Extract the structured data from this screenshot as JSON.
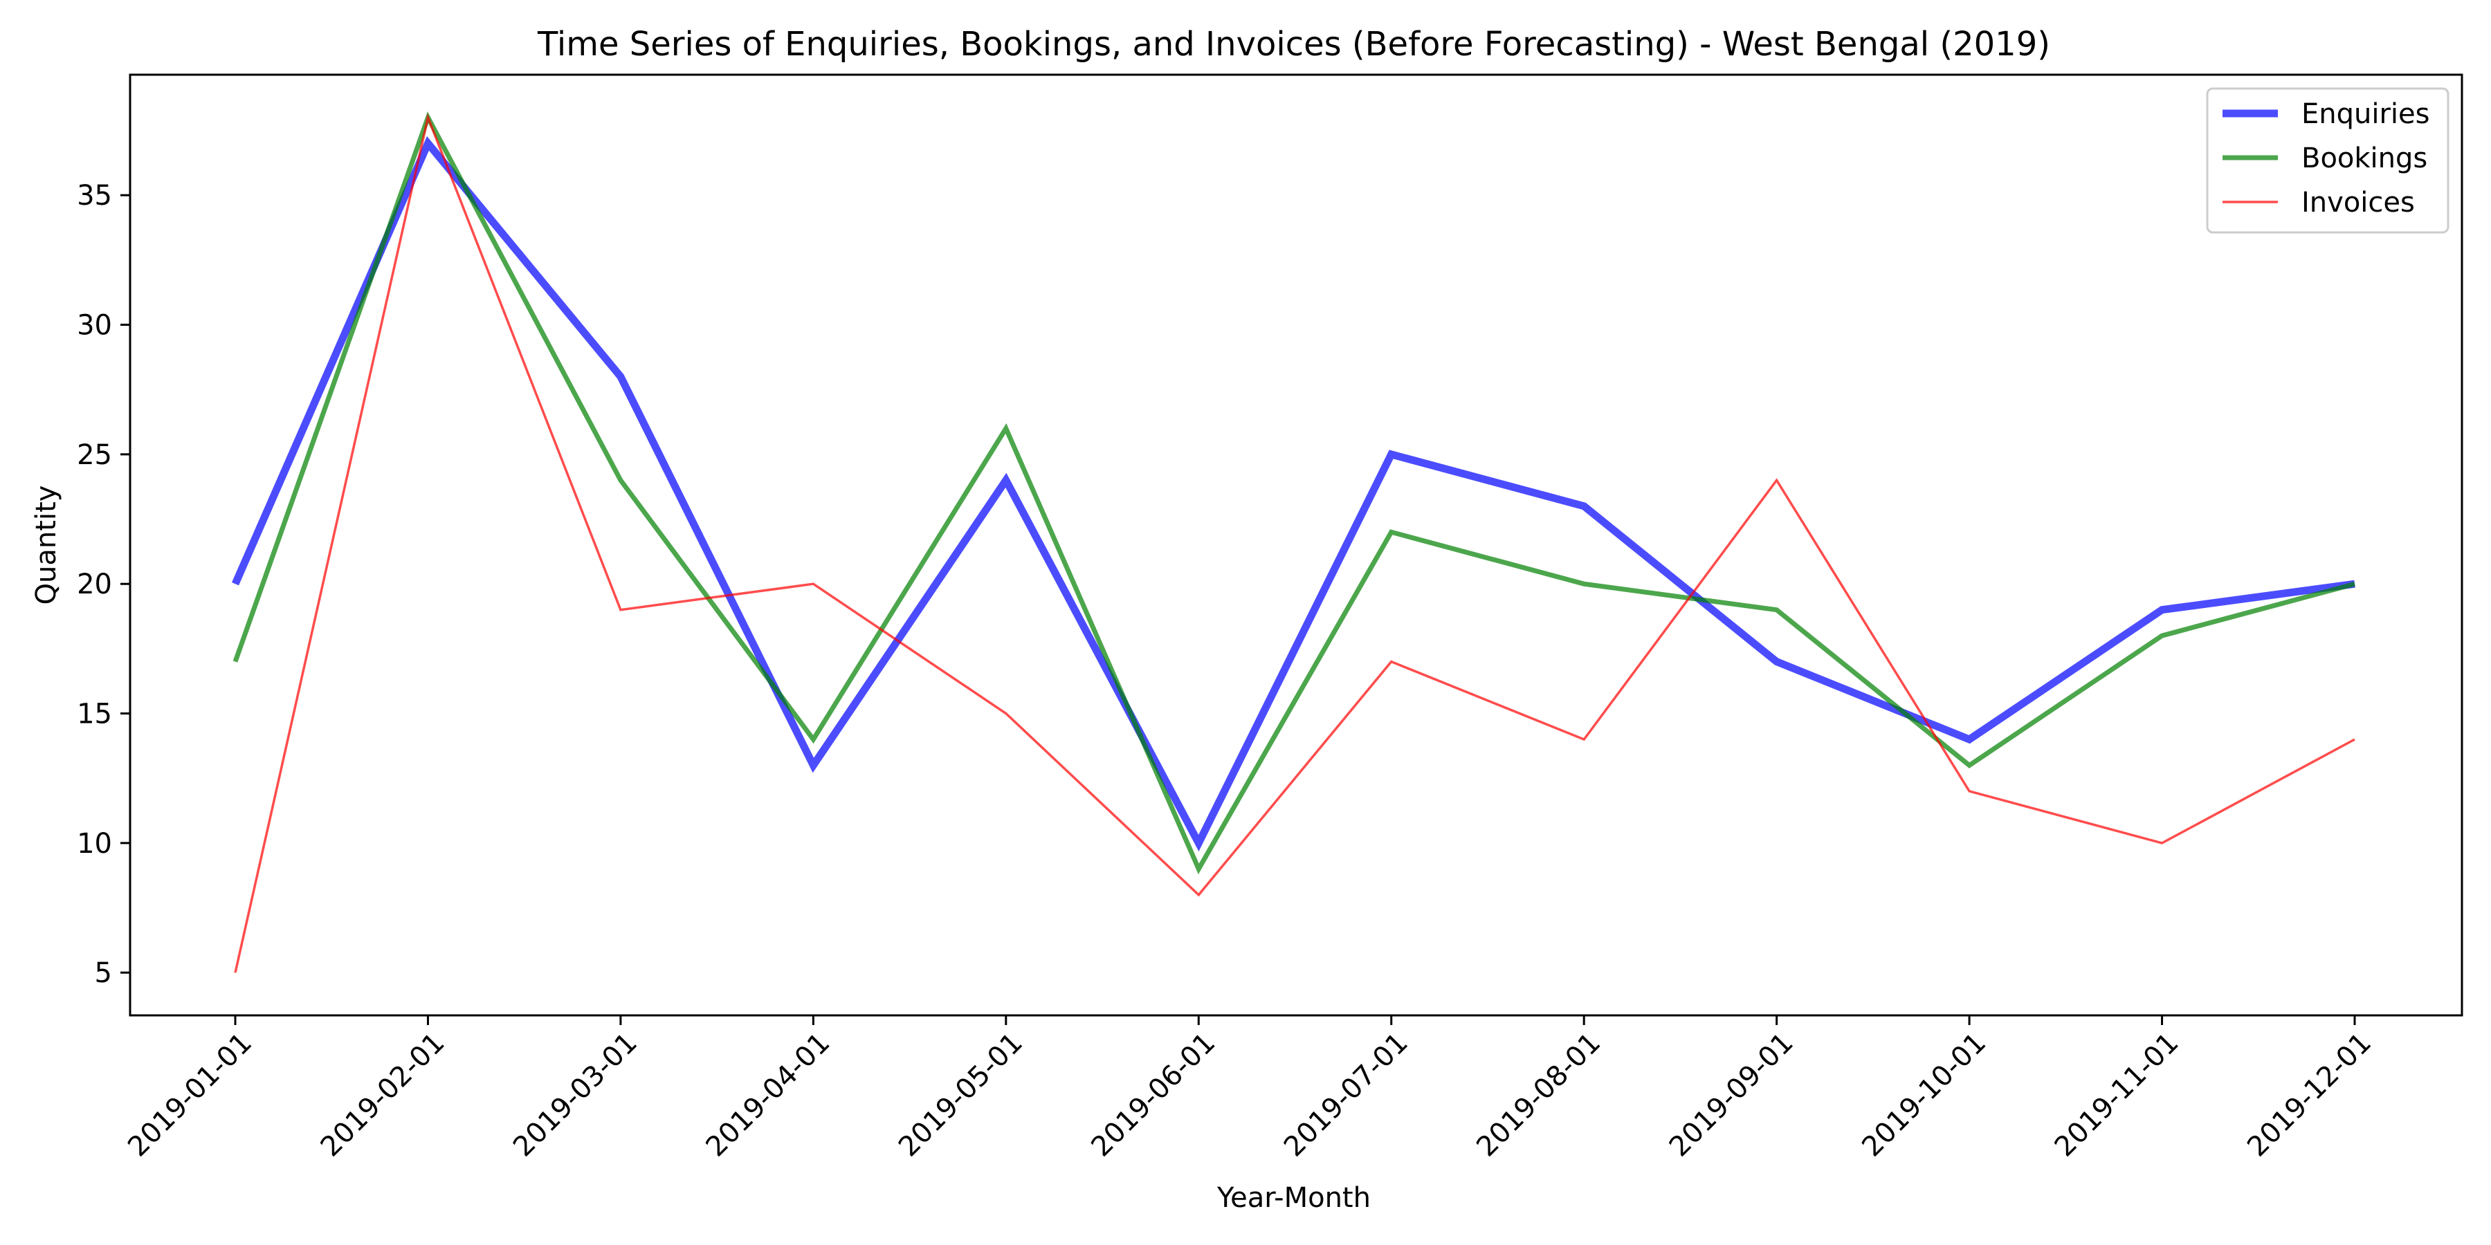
{
  "chart_data": {
    "type": "line",
    "title": "Time Series of Enquiries, Bookings, and Invoices (Before Forecasting) - West Bengal (2019)",
    "xlabel": "Year-Month",
    "ylabel": "Quantity",
    "x": [
      "2019-01-01",
      "2019-02-01",
      "2019-03-01",
      "2019-04-01",
      "2019-05-01",
      "2019-06-01",
      "2019-07-01",
      "2019-08-01",
      "2019-09-01",
      "2019-10-01",
      "2019-11-01",
      "2019-12-01"
    ],
    "y_ticks": [
      5,
      10,
      15,
      20,
      25,
      30,
      35
    ],
    "ylim": [
      3.35,
      39.65
    ],
    "grid": false,
    "legend_position": "top-right",
    "series": [
      {
        "name": "Enquiries",
        "color": "#0000ff",
        "alpha": 0.7,
        "line_weight": "thick",
        "values": [
          20,
          37,
          28,
          13,
          24,
          10,
          25,
          23,
          17,
          14,
          19,
          20
        ]
      },
      {
        "name": "Bookings",
        "color": "#008000",
        "alpha": 0.7,
        "line_weight": "medium",
        "values": [
          17,
          38,
          24,
          14,
          26,
          9,
          22,
          20,
          19,
          13,
          18,
          20
        ]
      },
      {
        "name": "Invoices",
        "color": "#ff0000",
        "alpha": 0.7,
        "line_weight": "thin",
        "values": [
          5,
          38,
          19,
          20,
          15,
          8,
          17,
          14,
          24,
          12,
          10,
          14
        ]
      }
    ]
  }
}
